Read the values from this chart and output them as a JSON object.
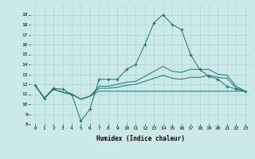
{
  "title": "",
  "xlabel": "Humidex (Indice chaleur)",
  "xlim": [
    -0.5,
    23.5
  ],
  "ylim": [
    8,
    20
  ],
  "yticks": [
    8,
    9,
    10,
    11,
    12,
    13,
    14,
    15,
    16,
    17,
    18,
    19
  ],
  "xticks": [
    0,
    1,
    2,
    3,
    4,
    5,
    6,
    7,
    8,
    9,
    10,
    11,
    12,
    13,
    14,
    15,
    16,
    17,
    18,
    19,
    20,
    21,
    22,
    23
  ],
  "xtick_labels": [
    "0",
    "1",
    "2",
    "3",
    "4",
    "5",
    "6",
    "7",
    "8",
    "9",
    "10",
    "11",
    "12",
    "13",
    "14",
    "15",
    "16",
    "17",
    "18",
    "19",
    "20",
    "21",
    "22",
    "23"
  ],
  "bg_color": "#cce9e9",
  "grid_color": "#aad4d4",
  "line_color": "#1a7070",
  "lines": [
    {
      "x": [
        0,
        1,
        2,
        3,
        4,
        5,
        6,
        7,
        8,
        9,
        10,
        11,
        12,
        13,
        14,
        15,
        16,
        17,
        18,
        19,
        20,
        21,
        22,
        23
      ],
      "y": [
        11.9,
        10.6,
        11.6,
        11.5,
        11.0,
        8.3,
        9.5,
        12.5,
        12.5,
        12.5,
        13.5,
        14.0,
        16.0,
        18.2,
        19.0,
        18.0,
        17.5,
        15.0,
        13.5,
        12.8,
        12.5,
        11.8,
        11.5,
        11.3
      ],
      "marker": "+"
    },
    {
      "x": [
        0,
        1,
        2,
        3,
        4,
        5,
        6,
        7,
        8,
        9,
        10,
        11,
        12,
        13,
        14,
        15,
        16,
        17,
        18,
        19,
        20,
        21,
        22,
        23
      ],
      "y": [
        11.9,
        10.6,
        11.5,
        11.2,
        11.0,
        10.5,
        10.8,
        11.8,
        11.8,
        12.0,
        12.2,
        12.3,
        12.8,
        13.3,
        13.8,
        13.3,
        13.2,
        13.5,
        13.5,
        13.5,
        13.0,
        12.9,
        11.8,
        11.3
      ],
      "marker": null
    },
    {
      "x": [
        0,
        1,
        2,
        3,
        4,
        5,
        6,
        7,
        8,
        9,
        10,
        11,
        12,
        13,
        14,
        15,
        16,
        17,
        18,
        19,
        20,
        21,
        22,
        23
      ],
      "y": [
        11.9,
        10.6,
        11.5,
        11.2,
        11.0,
        10.5,
        10.8,
        11.6,
        11.6,
        11.7,
        11.9,
        12.0,
        12.3,
        12.6,
        12.9,
        12.6,
        12.5,
        12.7,
        12.7,
        12.9,
        12.7,
        12.6,
        11.6,
        11.3
      ],
      "marker": null
    },
    {
      "x": [
        0,
        1,
        2,
        3,
        4,
        5,
        6,
        7,
        8,
        9,
        10,
        11,
        12,
        13,
        14,
        15,
        16,
        17,
        18,
        19,
        20,
        21,
        22,
        23
      ],
      "y": [
        11.9,
        10.6,
        11.5,
        11.2,
        11.0,
        10.5,
        10.8,
        11.3,
        11.3,
        11.3,
        11.3,
        11.3,
        11.3,
        11.3,
        11.3,
        11.3,
        11.3,
        11.3,
        11.3,
        11.3,
        11.3,
        11.3,
        11.3,
        11.3
      ],
      "marker": null
    }
  ]
}
